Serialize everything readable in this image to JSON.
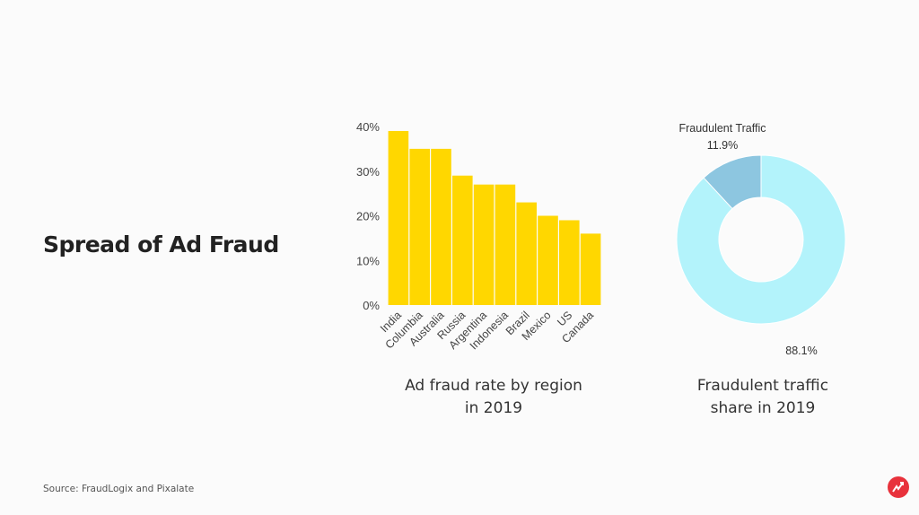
{
  "slide": {
    "title": "Spread of Ad Fraud",
    "source": "Source: FraudLogix and Pixalate",
    "logo_icon": "red-circle-arrow-logo"
  },
  "chart_data": [
    {
      "type": "bar",
      "caption_line1": "Ad fraud rate by region",
      "caption_line2": "in 2019",
      "categories": [
        "India",
        "Columbia",
        "Australia",
        "Russia",
        "Argentina",
        "Indonesia",
        "Brazil",
        "Mexico",
        "US",
        "Canada"
      ],
      "values": [
        39,
        35,
        35,
        29,
        27,
        27,
        23,
        20,
        19,
        16
      ],
      "unit": "%",
      "ylim": [
        0,
        40
      ],
      "yticks": [
        "0%",
        "10%",
        "20%",
        "30%",
        "40%"
      ],
      "color": "#ffd700",
      "grid": false
    },
    {
      "type": "pie",
      "donut": true,
      "caption_line1": "Fraudulent traffic",
      "caption_line2": "share in 2019",
      "slices": [
        {
          "label": "",
          "value": 88.1,
          "value_label": "88.1%",
          "color": "#b3f3fb"
        },
        {
          "label": "Fraudulent Traffic",
          "value": 11.9,
          "value_label": "11.9%",
          "color": "#8dc6e0"
        }
      ]
    }
  ]
}
